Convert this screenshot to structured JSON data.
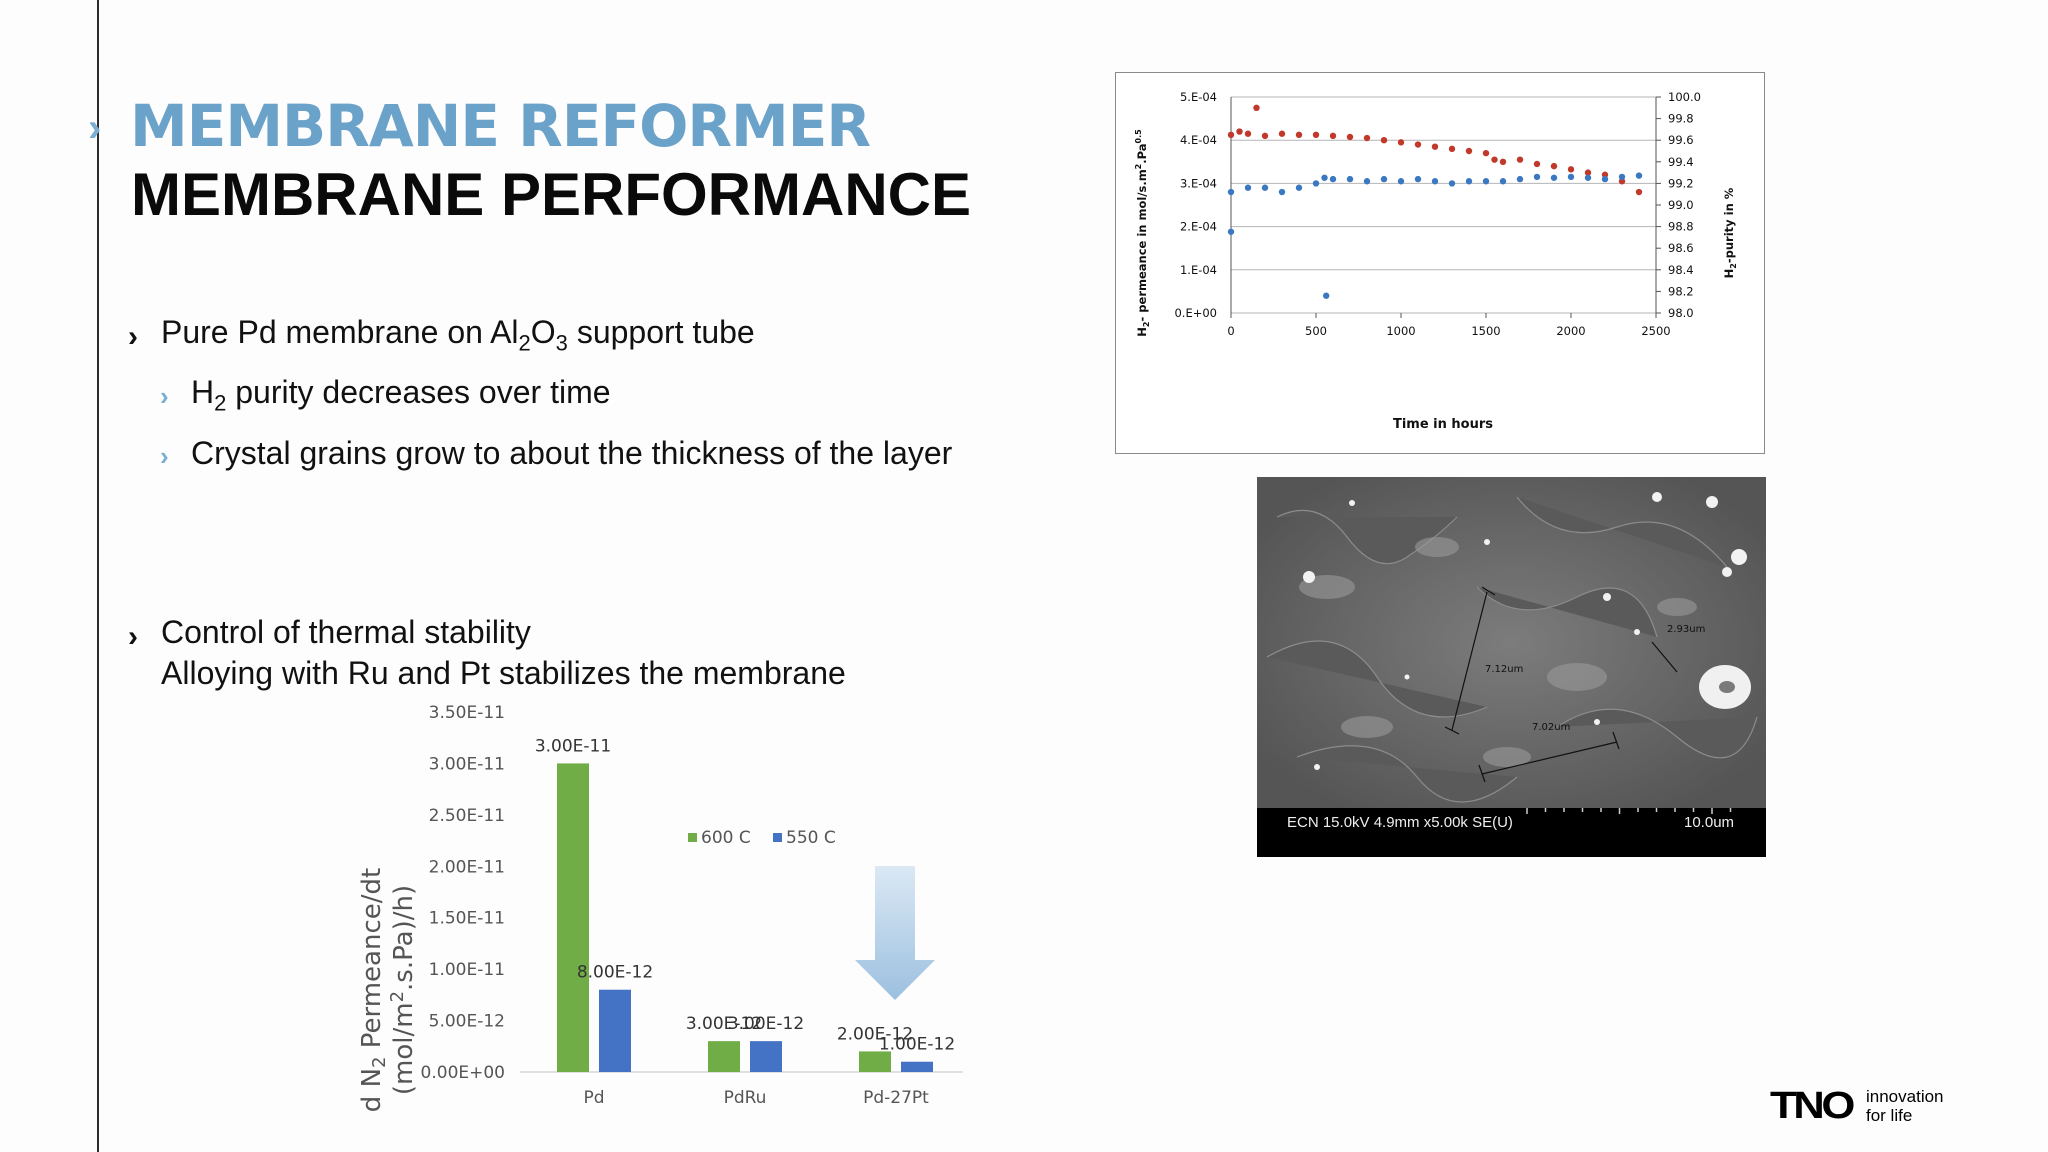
{
  "slide": {
    "title_line1": "MEMBRANE REFORMER",
    "title_line2": "MEMBRANE PERFORMANCE",
    "bullets": {
      "b1_pre": "Pure Pd membrane on Al",
      "b1_sub1": "2",
      "b1_mid": "O",
      "b1_sub2": "3",
      "b1_post": " support tube",
      "b2_pre": "H",
      "b2_sub": "2",
      "b2_post": " purity decreases over time",
      "b3": "Crystal grains grow to about the thickness of the layer",
      "b4": "Control of thermal stability",
      "b5": "Alloying with Ru and Pt stabilizes the membrane"
    },
    "brand": {
      "logo": "TNO",
      "tagline1": "innovation",
      "tagline2": "for life"
    },
    "colors": {
      "accent_blue": "#6ba2c9",
      "bar_green": "#70ad47",
      "bar_blue": "#4472c4",
      "series_red": "#c0392b",
      "series_blue": "#3a78c2"
    }
  },
  "sem_image": {
    "info": "ECN 15.0kV 4.9mm x5.00k SE(U)",
    "scale": "10.0um",
    "measure_labels": [
      "2.93um",
      "7.12um",
      "7.02um"
    ]
  },
  "chart_data": [
    {
      "type": "scatter",
      "title": "",
      "xlabel": "Time in hours",
      "ylabel_left": "H2- permeance in mol/s.m2.Pa0.5",
      "ylabel_right": "H2-purity in %",
      "x_ticks": [
        "0",
        "500",
        "1000",
        "1500",
        "2000",
        "2500"
      ],
      "y_left_ticks": [
        "0.E+00",
        "1.E-04",
        "2.E-04",
        "3.E-04",
        "4.E-04",
        "5.E-04"
      ],
      "y_right_ticks": [
        "98.0",
        "98.2",
        "98.4",
        "98.6",
        "98.8",
        "99.0",
        "99.2",
        "99.4",
        "99.6",
        "99.8",
        "100.0"
      ],
      "xlim": [
        0,
        2500
      ],
      "ylim_left": [
        0,
        0.0005
      ],
      "ylim_right": [
        98.0,
        100.0
      ],
      "grid": true,
      "series": [
        {
          "axis": "right",
          "color": "#c0392b",
          "points": [
            [
              0,
              99.65
            ],
            [
              50,
              99.68
            ],
            [
              100,
              99.66
            ],
            [
              150,
              99.9
            ],
            [
              200,
              99.64
            ],
            [
              300,
              99.66
            ],
            [
              400,
              99.65
            ],
            [
              500,
              99.65
            ],
            [
              600,
              99.64
            ],
            [
              700,
              99.63
            ],
            [
              800,
              99.62
            ],
            [
              900,
              99.6
            ],
            [
              1000,
              99.58
            ],
            [
              1100,
              99.56
            ],
            [
              1200,
              99.54
            ],
            [
              1300,
              99.52
            ],
            [
              1400,
              99.5
            ],
            [
              1500,
              99.48
            ],
            [
              1550,
              99.42
            ],
            [
              1600,
              99.4
            ],
            [
              1700,
              99.42
            ],
            [
              1800,
              99.38
            ],
            [
              1900,
              99.36
            ],
            [
              2000,
              99.33
            ],
            [
              2100,
              99.3
            ],
            [
              2200,
              99.28
            ],
            [
              2300,
              99.22
            ],
            [
              2400,
              99.12
            ]
          ]
        },
        {
          "axis": "left",
          "color": "#3a78c2",
          "points": [
            [
              0,
              0.00028
            ],
            [
              0,
              0.000188
            ],
            [
              100,
              0.00029
            ],
            [
              200,
              0.00029
            ],
            [
              300,
              0.00028
            ],
            [
              400,
              0.00029
            ],
            [
              500,
              0.0003
            ],
            [
              550,
              0.000313
            ],
            [
              560,
              4e-05
            ],
            [
              600,
              0.00031
            ],
            [
              700,
              0.00031
            ],
            [
              800,
              0.000305
            ],
            [
              900,
              0.00031
            ],
            [
              1000,
              0.000305
            ],
            [
              1100,
              0.00031
            ],
            [
              1200,
              0.000305
            ],
            [
              1300,
              0.0003
            ],
            [
              1400,
              0.000305
            ],
            [
              1500,
              0.000305
            ],
            [
              1600,
              0.000305
            ],
            [
              1700,
              0.00031
            ],
            [
              1800,
              0.000315
            ],
            [
              1900,
              0.000313
            ],
            [
              2000,
              0.000315
            ],
            [
              2100,
              0.000313
            ],
            [
              2200,
              0.00031
            ],
            [
              2300,
              0.000315
            ],
            [
              2400,
              0.000318
            ]
          ]
        }
      ]
    },
    {
      "type": "bar",
      "title": "",
      "xlabel": "",
      "ylabel": "d N2 Permeance/dt (mol/m2.s.Pa)/h)",
      "categories": [
        "Pd",
        "PdRu",
        "Pd-27Pt"
      ],
      "ylim": [
        0,
        3.5e-11
      ],
      "y_ticks": [
        "0.00E+00",
        "5.00E-12",
        "1.00E-11",
        "1.50E-11",
        "2.00E-11",
        "2.50E-11",
        "3.00E-11",
        "3.50E-11"
      ],
      "legend": "top-right",
      "series": [
        {
          "name": "600 C",
          "color": "#70ad47",
          "values": [
            3e-11,
            3e-12,
            2e-12
          ],
          "labels": [
            "3.00E-11",
            "3.00E-12",
            "2.00E-12"
          ]
        },
        {
          "name": "550 C",
          "color": "#4472c4",
          "values": [
            8e-12,
            3e-12,
            1e-12
          ],
          "labels": [
            "8.00E-12",
            "3.00E-12",
            "1.00E-12"
          ]
        }
      ]
    }
  ]
}
